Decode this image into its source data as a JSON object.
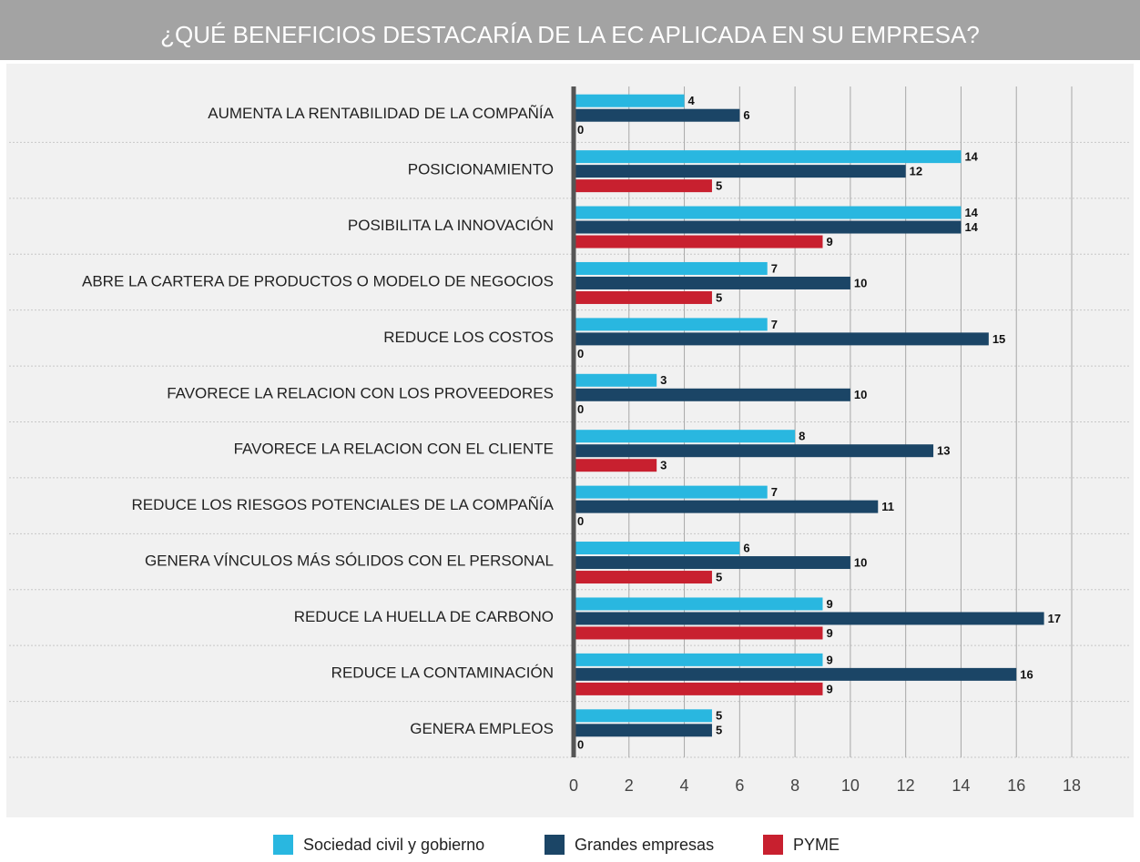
{
  "chart_data": {
    "type": "hbar",
    "title": "¿QUÉ BENEFICIOS DESTACARÍA DE LA EC APLICADA EN SU EMPRESA?",
    "categories": [
      "AUMENTA LA RENTABILIDAD DE LA COMPAÑÍA",
      "POSICIONAMIENTO",
      "POSIBILITA LA INNOVACIÓN",
      "ABRE LA CARTERA DE PRODUCTOS O MODELO DE NEGOCIOS",
      "REDUCE LOS COSTOS",
      "FAVORECE LA RELACION CON LOS PROVEEDORES",
      "FAVORECE LA RELACION CON EL CLIENTE",
      "REDUCE LOS RIESGOS POTENCIALES DE LA COMPAÑÍA",
      "GENERA VÍNCULOS MÁS SÓLIDOS CON EL PERSONAL",
      "REDUCE LA HUELLA DE CARBONO",
      "REDUCE LA CONTAMINACIÓN",
      "GENERA EMPLEOS"
    ],
    "series": [
      {
        "name": "Sociedad civil y gobierno",
        "color": "#29b7e0",
        "values": [
          4,
          14,
          14,
          7,
          7,
          3,
          8,
          7,
          6,
          9,
          9,
          5
        ]
      },
      {
        "name": "Grandes empresas",
        "color": "#1b4566",
        "values": [
          6,
          12,
          14,
          10,
          15,
          10,
          13,
          11,
          10,
          17,
          16,
          5
        ]
      },
      {
        "name": "PYME",
        "color": "#c8202f",
        "values": [
          0,
          5,
          9,
          5,
          0,
          0,
          3,
          0,
          5,
          9,
          9,
          0
        ]
      }
    ],
    "xlim": [
      0,
      18
    ],
    "xticks": [
      0,
      2,
      4,
      6,
      8,
      10,
      12,
      14,
      16,
      18
    ],
    "grid": true,
    "legend": "bottom"
  }
}
